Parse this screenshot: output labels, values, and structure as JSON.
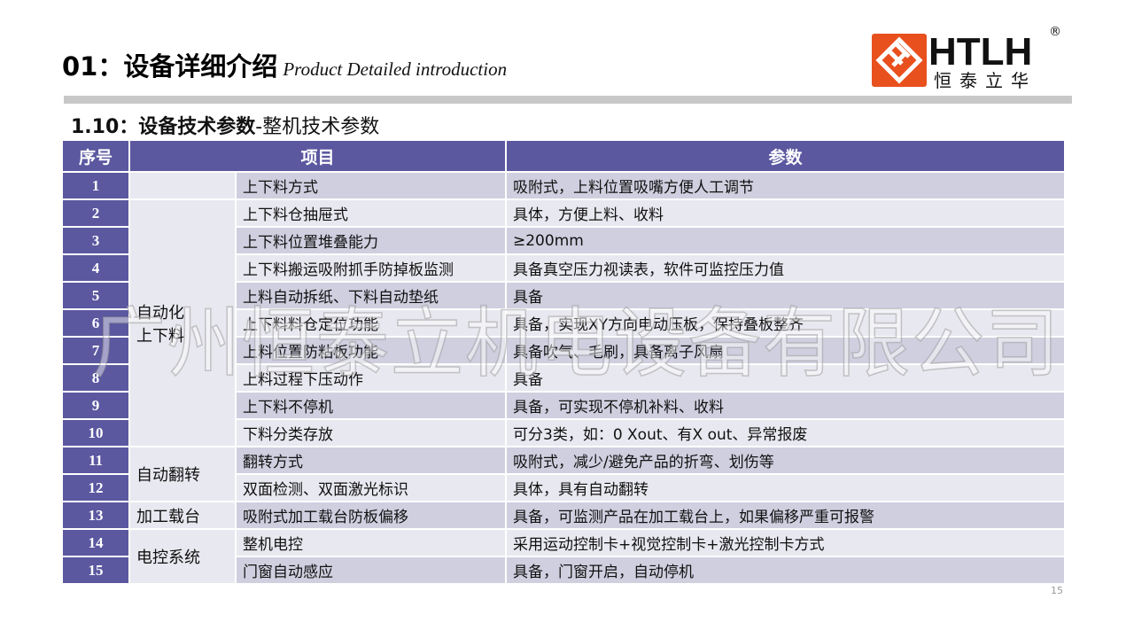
{
  "header": {
    "title_cn": "01：设备详细介绍",
    "title_en": "Product Detailed introduction"
  },
  "logo": {
    "text": "HTLH",
    "sub": "恒泰立华",
    "mark": "®",
    "color": "#e8501e"
  },
  "subtitle": {
    "bold": "1.10：设备技术参数",
    "rest": "-整机技术参数"
  },
  "table": {
    "headers": [
      "序号",
      "项目",
      "参数"
    ],
    "header_color": "#5b58a0",
    "groups": [
      {
        "label": "",
        "rows": 1
      },
      {
        "label": "自动化上下料",
        "rows": 9
      },
      {
        "label": "自动翻转",
        "rows": 2
      },
      {
        "label": "加工载台",
        "rows": 1
      },
      {
        "label": "电控系统",
        "rows": 2
      }
    ],
    "rows": [
      {
        "n": "1",
        "item": "上下料方式",
        "param": "吸附式，上料位置吸嘴方便人工调节"
      },
      {
        "n": "2",
        "item": "上下料仓抽屉式",
        "param": "具体，方便上料、收料"
      },
      {
        "n": "3",
        "item": "上下料位置堆叠能力",
        "param": "≥200mm"
      },
      {
        "n": "4",
        "item": "上下料搬运吸附抓手防掉板监测",
        "param": "具备真空压力视读表，软件可监控压力值"
      },
      {
        "n": "5",
        "item": "上料自动拆纸、下料自动垫纸",
        "param": "具备"
      },
      {
        "n": "6",
        "item": "上下料料仓定位功能",
        "param": "具备，实现XY方向电动压板，保持叠板整齐"
      },
      {
        "n": "7",
        "item": "上料位置防粘板功能",
        "param": "具备吹气、毛刷，具备离子风扇"
      },
      {
        "n": "8",
        "item": "上料过程下压动作",
        "param": "具备"
      },
      {
        "n": "9",
        "item": "上下料不停机",
        "param": "具备，可实现不停机补料、收料"
      },
      {
        "n": "10",
        "item": "下料分类存放",
        "param": "可分3类，如：0 Xout、有X out、异常报废"
      },
      {
        "n": "11",
        "item": "翻转方式",
        "param": "吸附式，减少/避免产品的折弯、划伤等"
      },
      {
        "n": "12",
        "item": "双面检测、双面激光标识",
        "param": "具体，具有自动翻转"
      },
      {
        "n": "13",
        "item": "吸附式加工载台防板偏移",
        "param": "具备，可监测产品在加工载台上，如果偏移严重可报警"
      },
      {
        "n": "14",
        "item": "整机电控",
        "param": "采用运动控制卡+视觉控制卡+激光控制卡方式"
      },
      {
        "n": "15",
        "item": "门窗自动感应",
        "param": "具备，门窗开启，自动停机"
      }
    ]
  },
  "watermark": "广州恒泰立机电设备有限公司",
  "page_number": "15"
}
